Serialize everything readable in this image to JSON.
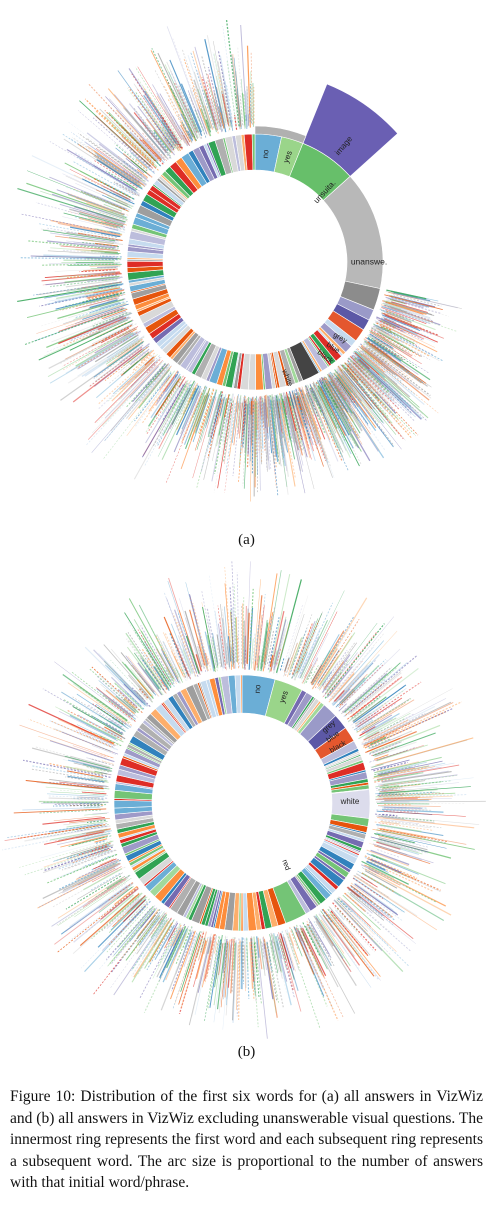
{
  "figure": {
    "subfigure_a": {
      "label": "(a)",
      "visible_segment_labels": [
        "no",
        "yes",
        "image",
        "unsuita.",
        "unanswe.",
        "grey",
        "blue",
        "black",
        "white"
      ]
    },
    "subfigure_b": {
      "label": "(b)",
      "visible_segment_labels": [
        "no",
        "yes",
        "grey",
        "blue",
        "black",
        "white",
        "red"
      ]
    },
    "caption": "Figure 10: Distribution of the first six words for (a) all answers in VizWiz and (b) all answers in VizWiz excluding unanswerable visual questions. The innermost ring represents the first word and each subsequent ring represents a subsequent word. The arc size is proportional to the number of answers with that initial word/phrase."
  },
  "colors": {
    "no": "#6baed6",
    "yes": "#9ad58a",
    "image": "#6a5fb3",
    "unsuita": "#67bf6a",
    "unanswe": "#b8b8b8",
    "grey": "#9a9ac8",
    "blue": "#5c58a6",
    "black": "#e4572e",
    "white": "#dcdcec",
    "red": "#74c476"
  }
}
